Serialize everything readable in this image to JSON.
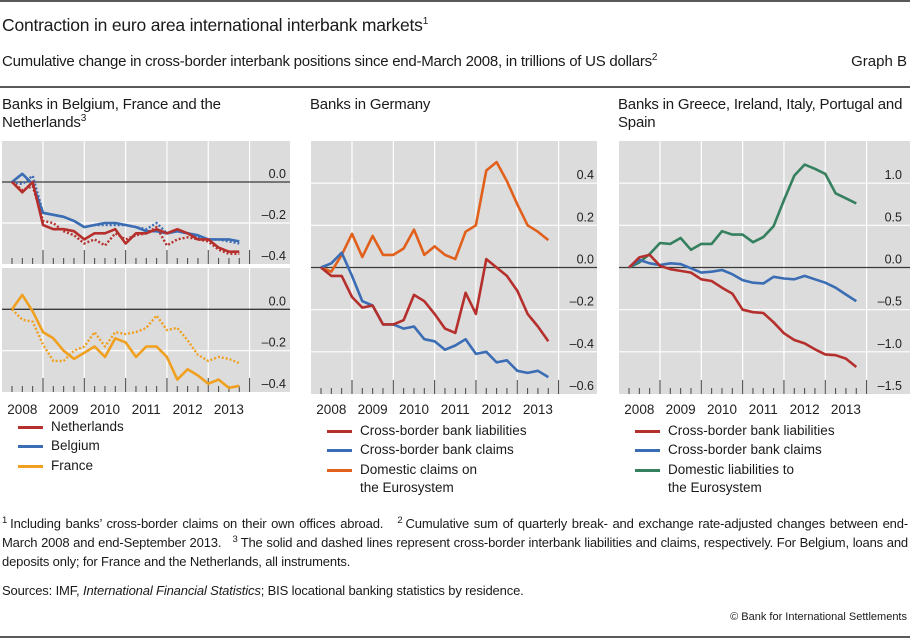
{
  "header": {
    "title": "Contraction in euro area international interbank markets",
    "title_sup": "1",
    "subtitle": "Cumulative change in cross-border interbank positions since end-March 2008, in trillions of US dollars",
    "subtitle_sup": "2",
    "graph_label": "Graph B"
  },
  "panels": [
    {
      "title": "Banks in Belgium, France and the Netherlands",
      "title_sup": "3"
    },
    {
      "title": "Banks in Germany"
    },
    {
      "title": "Banks in Greece, Ireland, Italy, Portugal and Spain"
    }
  ],
  "legends": [
    [
      {
        "label": "Netherlands",
        "color": "#b5302d"
      },
      {
        "label": "Belgium",
        "color": "#3b6db4"
      },
      {
        "label": "France",
        "color": "#f0a01e"
      }
    ],
    [
      {
        "label": "Cross-border bank liabilities",
        "color": "#b5302d"
      },
      {
        "label": "Cross-border bank claims",
        "color": "#3b6db4"
      },
      {
        "label": "Domestic claims on\nthe Eurosystem",
        "color": "#e0601c"
      }
    ],
    [
      {
        "label": "Cross-border bank liabilities",
        "color": "#b5302d"
      },
      {
        "label": "Cross-border bank claims",
        "color": "#3b6db4"
      },
      {
        "label": "Domestic liabilities to\nthe Eurosystem",
        "color": "#35805f"
      }
    ]
  ],
  "chart_data": [
    {
      "type": "line",
      "panel": "Banks in Belgium, France and the Netherlands",
      "subplot": "top",
      "x": [
        "2008Q1",
        "2008Q2",
        "2008Q3",
        "2008Q4",
        "2009Q1",
        "2009Q2",
        "2009Q3",
        "2009Q4",
        "2010Q1",
        "2010Q2",
        "2010Q3",
        "2010Q4",
        "2011Q1",
        "2011Q2",
        "2011Q3",
        "2011Q4",
        "2012Q1",
        "2012Q2",
        "2012Q3",
        "2012Q4",
        "2013Q1",
        "2013Q2",
        "2013Q3"
      ],
      "ylim": [
        -0.4,
        0.2
      ],
      "yticks": [
        {
          "value": 0,
          "label": "0.0"
        },
        {
          "value": -0.2,
          "label": "–0.2"
        },
        {
          "value": -0.4,
          "label": "–0.4"
        }
      ],
      "grid": true,
      "series": [
        {
          "name": "Belgium – cross-border interbank liabilities",
          "color": "#3b6db4",
          "style": "solid",
          "values": [
            0,
            0.04,
            -0.01,
            -0.15,
            -0.16,
            -0.17,
            -0.19,
            -0.22,
            -0.21,
            -0.2,
            -0.2,
            -0.21,
            -0.22,
            -0.24,
            -0.24,
            -0.25,
            -0.24,
            -0.25,
            -0.26,
            -0.28,
            -0.28,
            -0.28,
            -0.29
          ]
        },
        {
          "name": "Belgium – cross-border interbank claims",
          "color": "#3b6db4",
          "style": "dotted",
          "values": [
            0,
            -0.01,
            0.03,
            -0.15,
            -0.16,
            -0.17,
            -0.19,
            -0.22,
            -0.21,
            -0.21,
            -0.21,
            -0.21,
            -0.22,
            -0.23,
            -0.2,
            -0.25,
            -0.24,
            -0.25,
            -0.27,
            -0.28,
            -0.28,
            -0.29,
            -0.3
          ]
        },
        {
          "name": "Netherlands – cross-border interbank liabilities",
          "color": "#b5302d",
          "style": "solid",
          "values": [
            0,
            -0.05,
            0.0,
            -0.21,
            -0.23,
            -0.23,
            -0.24,
            -0.28,
            -0.25,
            -0.25,
            -0.23,
            -0.3,
            -0.25,
            -0.25,
            -0.23,
            -0.25,
            -0.23,
            -0.25,
            -0.28,
            -0.28,
            -0.32,
            -0.34,
            -0.34
          ]
        },
        {
          "name": "Netherlands – cross-border interbank claims",
          "color": "#b5302d",
          "style": "dotted",
          "values": [
            0,
            -0.04,
            -0.02,
            -0.19,
            -0.2,
            -0.24,
            -0.26,
            -0.3,
            -0.28,
            -0.31,
            -0.25,
            -0.28,
            -0.26,
            -0.25,
            -0.22,
            -0.31,
            -0.28,
            -0.27,
            -0.28,
            -0.29,
            -0.33,
            -0.35,
            -0.35
          ]
        }
      ]
    },
    {
      "type": "line",
      "panel": "Banks in Belgium, France and the Netherlands",
      "subplot": "bottom",
      "x": [
        "2008Q1",
        "2008Q2",
        "2008Q3",
        "2008Q4",
        "2009Q1",
        "2009Q2",
        "2009Q3",
        "2009Q4",
        "2010Q1",
        "2010Q2",
        "2010Q3",
        "2010Q4",
        "2011Q1",
        "2011Q2",
        "2011Q3",
        "2011Q4",
        "2012Q1",
        "2012Q2",
        "2012Q3",
        "2012Q4",
        "2013Q1",
        "2013Q2",
        "2013Q3"
      ],
      "xtick_labels": [
        "2008",
        "2009",
        "2010",
        "2011",
        "2012",
        "2013"
      ],
      "ylim": [
        -0.4,
        0.2
      ],
      "yticks": [
        {
          "value": 0,
          "label": "0.0"
        },
        {
          "value": -0.2,
          "label": "–0.2"
        },
        {
          "value": -0.4,
          "label": "–0.4"
        }
      ],
      "grid": true,
      "series": [
        {
          "name": "France – cross-border interbank claims",
          "color": "#f0a01e",
          "style": "dotted",
          "values": [
            0,
            -0.05,
            -0.06,
            -0.17,
            -0.25,
            -0.25,
            -0.2,
            -0.18,
            -0.11,
            -0.18,
            -0.11,
            -0.12,
            -0.11,
            -0.09,
            -0.03,
            -0.1,
            -0.09,
            -0.15,
            -0.22,
            -0.25,
            -0.23,
            -0.24,
            -0.26
          ]
        },
        {
          "name": "France – cross-border interbank liabilities",
          "color": "#f0a01e",
          "style": "solid",
          "values": [
            0,
            0.07,
            -0.01,
            -0.11,
            -0.14,
            -0.2,
            -0.24,
            -0.21,
            -0.18,
            -0.23,
            -0.14,
            -0.16,
            -0.23,
            -0.18,
            -0.18,
            -0.23,
            -0.34,
            -0.29,
            -0.32,
            -0.36,
            -0.34,
            -0.38,
            -0.37
          ]
        }
      ]
    },
    {
      "type": "line",
      "panel": "Banks in Germany",
      "x": [
        "2008Q1",
        "2008Q2",
        "2008Q3",
        "2008Q4",
        "2009Q1",
        "2009Q2",
        "2009Q3",
        "2009Q4",
        "2010Q1",
        "2010Q2",
        "2010Q3",
        "2010Q4",
        "2011Q1",
        "2011Q2",
        "2011Q3",
        "2011Q4",
        "2012Q1",
        "2012Q2",
        "2012Q3",
        "2012Q4",
        "2013Q1",
        "2013Q2",
        "2013Q3"
      ],
      "xtick_labels": [
        "2008",
        "2009",
        "2010",
        "2011",
        "2012",
        "2013"
      ],
      "ylim": [
        -0.6,
        0.6
      ],
      "yticks": [
        {
          "value": 0.4,
          "label": "0.4"
        },
        {
          "value": 0.2,
          "label": "0.2"
        },
        {
          "value": 0,
          "label": "0.0"
        },
        {
          "value": -0.2,
          "label": "–0.2"
        },
        {
          "value": -0.4,
          "label": "–0.4"
        },
        {
          "value": -0.6,
          "label": "–0.6"
        }
      ],
      "grid": true,
      "series": [
        {
          "name": "Domestic claims on the Eurosystem",
          "color": "#e0601c",
          "style": "solid",
          "values": [
            0,
            -0.02,
            0.06,
            0.16,
            0.05,
            0.15,
            0.06,
            0.06,
            0.09,
            0.18,
            0.06,
            0.1,
            0.06,
            0.04,
            0.17,
            0.2,
            0.46,
            0.5,
            0.41,
            0.3,
            0.2,
            0.17,
            0.13
          ]
        },
        {
          "name": "Cross-border bank claims",
          "color": "#3b6db4",
          "style": "solid",
          "values": [
            0,
            0.02,
            0.07,
            -0.04,
            -0.16,
            -0.18,
            -0.27,
            -0.27,
            -0.29,
            -0.28,
            -0.34,
            -0.35,
            -0.39,
            -0.37,
            -0.34,
            -0.41,
            -0.4,
            -0.45,
            -0.44,
            -0.49,
            -0.5,
            -0.49,
            -0.52
          ]
        },
        {
          "name": "Cross-border bank liabilities",
          "color": "#b5302d",
          "style": "solid",
          "values": [
            0,
            -0.04,
            -0.04,
            -0.14,
            -0.19,
            -0.18,
            -0.27,
            -0.27,
            -0.25,
            -0.13,
            -0.16,
            -0.22,
            -0.29,
            -0.31,
            -0.12,
            -0.22,
            0.04,
            0.0,
            -0.04,
            -0.11,
            -0.22,
            -0.28,
            -0.35
          ]
        }
      ]
    },
    {
      "type": "line",
      "panel": "Banks in Greece, Ireland, Italy, Portugal and Spain",
      "x": [
        "2008Q1",
        "2008Q2",
        "2008Q3",
        "2008Q4",
        "2009Q1",
        "2009Q2",
        "2009Q3",
        "2009Q4",
        "2010Q1",
        "2010Q2",
        "2010Q3",
        "2010Q4",
        "2011Q1",
        "2011Q2",
        "2011Q3",
        "2011Q4",
        "2012Q1",
        "2012Q2",
        "2012Q3",
        "2012Q4",
        "2013Q1",
        "2013Q2",
        "2013Q3"
      ],
      "xtick_labels": [
        "2008",
        "2009",
        "2010",
        "2011",
        "2012",
        "2013"
      ],
      "ylim": [
        -1.5,
        1.5
      ],
      "yticks": [
        {
          "value": 1.0,
          "label": "1.0"
        },
        {
          "value": 0.5,
          "label": "0.5"
        },
        {
          "value": 0,
          "label": "0.0"
        },
        {
          "value": -0.5,
          "label": "–0.5"
        },
        {
          "value": -1.0,
          "label": "–1.0"
        },
        {
          "value": -1.5,
          "label": "–1.5"
        }
      ],
      "grid": true,
      "series": [
        {
          "name": "Domestic liabilities to the Eurosystem",
          "color": "#35805f",
          "style": "solid",
          "values": [
            0,
            0.06,
            0.16,
            0.29,
            0.28,
            0.35,
            0.21,
            0.28,
            0.28,
            0.43,
            0.39,
            0.39,
            0.3,
            0.36,
            0.49,
            0.8,
            1.09,
            1.22,
            1.17,
            1.11,
            0.88,
            0.82,
            0.76
          ]
        },
        {
          "name": "Cross-border bank claims",
          "color": "#3b6db4",
          "style": "solid",
          "values": [
            0,
            0.09,
            0.05,
            0.03,
            0.05,
            0.04,
            -0.01,
            -0.06,
            -0.05,
            -0.03,
            -0.08,
            -0.15,
            -0.18,
            -0.19,
            -0.11,
            -0.13,
            -0.14,
            -0.1,
            -0.14,
            -0.18,
            -0.24,
            -0.32,
            -0.4
          ]
        },
        {
          "name": "Cross-border bank liabilities",
          "color": "#b5302d",
          "style": "solid",
          "values": [
            0,
            0.12,
            0.15,
            0.02,
            -0.02,
            -0.04,
            -0.06,
            -0.14,
            -0.16,
            -0.24,
            -0.31,
            -0.5,
            -0.53,
            -0.54,
            -0.65,
            -0.78,
            -0.86,
            -0.9,
            -0.97,
            -1.03,
            -1.04,
            -1.08,
            -1.18
          ]
        }
      ]
    }
  ],
  "footnotes": [
    {
      "num": "1",
      "text": "Including banks’ cross-border claims on their own offices abroad."
    },
    {
      "num": "2",
      "text": "Cumulative sum of quarterly break- and exchange rate-adjusted changes between end-March 2008 and end-September 2013."
    },
    {
      "num": "3",
      "text": "The solid and dashed lines represent cross-border interbank liabilities and claims, respectively. For Belgium, loans and deposits only; for France and the Netherlands, all instruments."
    }
  ],
  "sources": {
    "prefix": "Sources: IMF, ",
    "italic": "International Financial Statistics",
    "suffix": "; BIS locational banking statistics by residence."
  },
  "copyright": "© Bank for International Settlements"
}
